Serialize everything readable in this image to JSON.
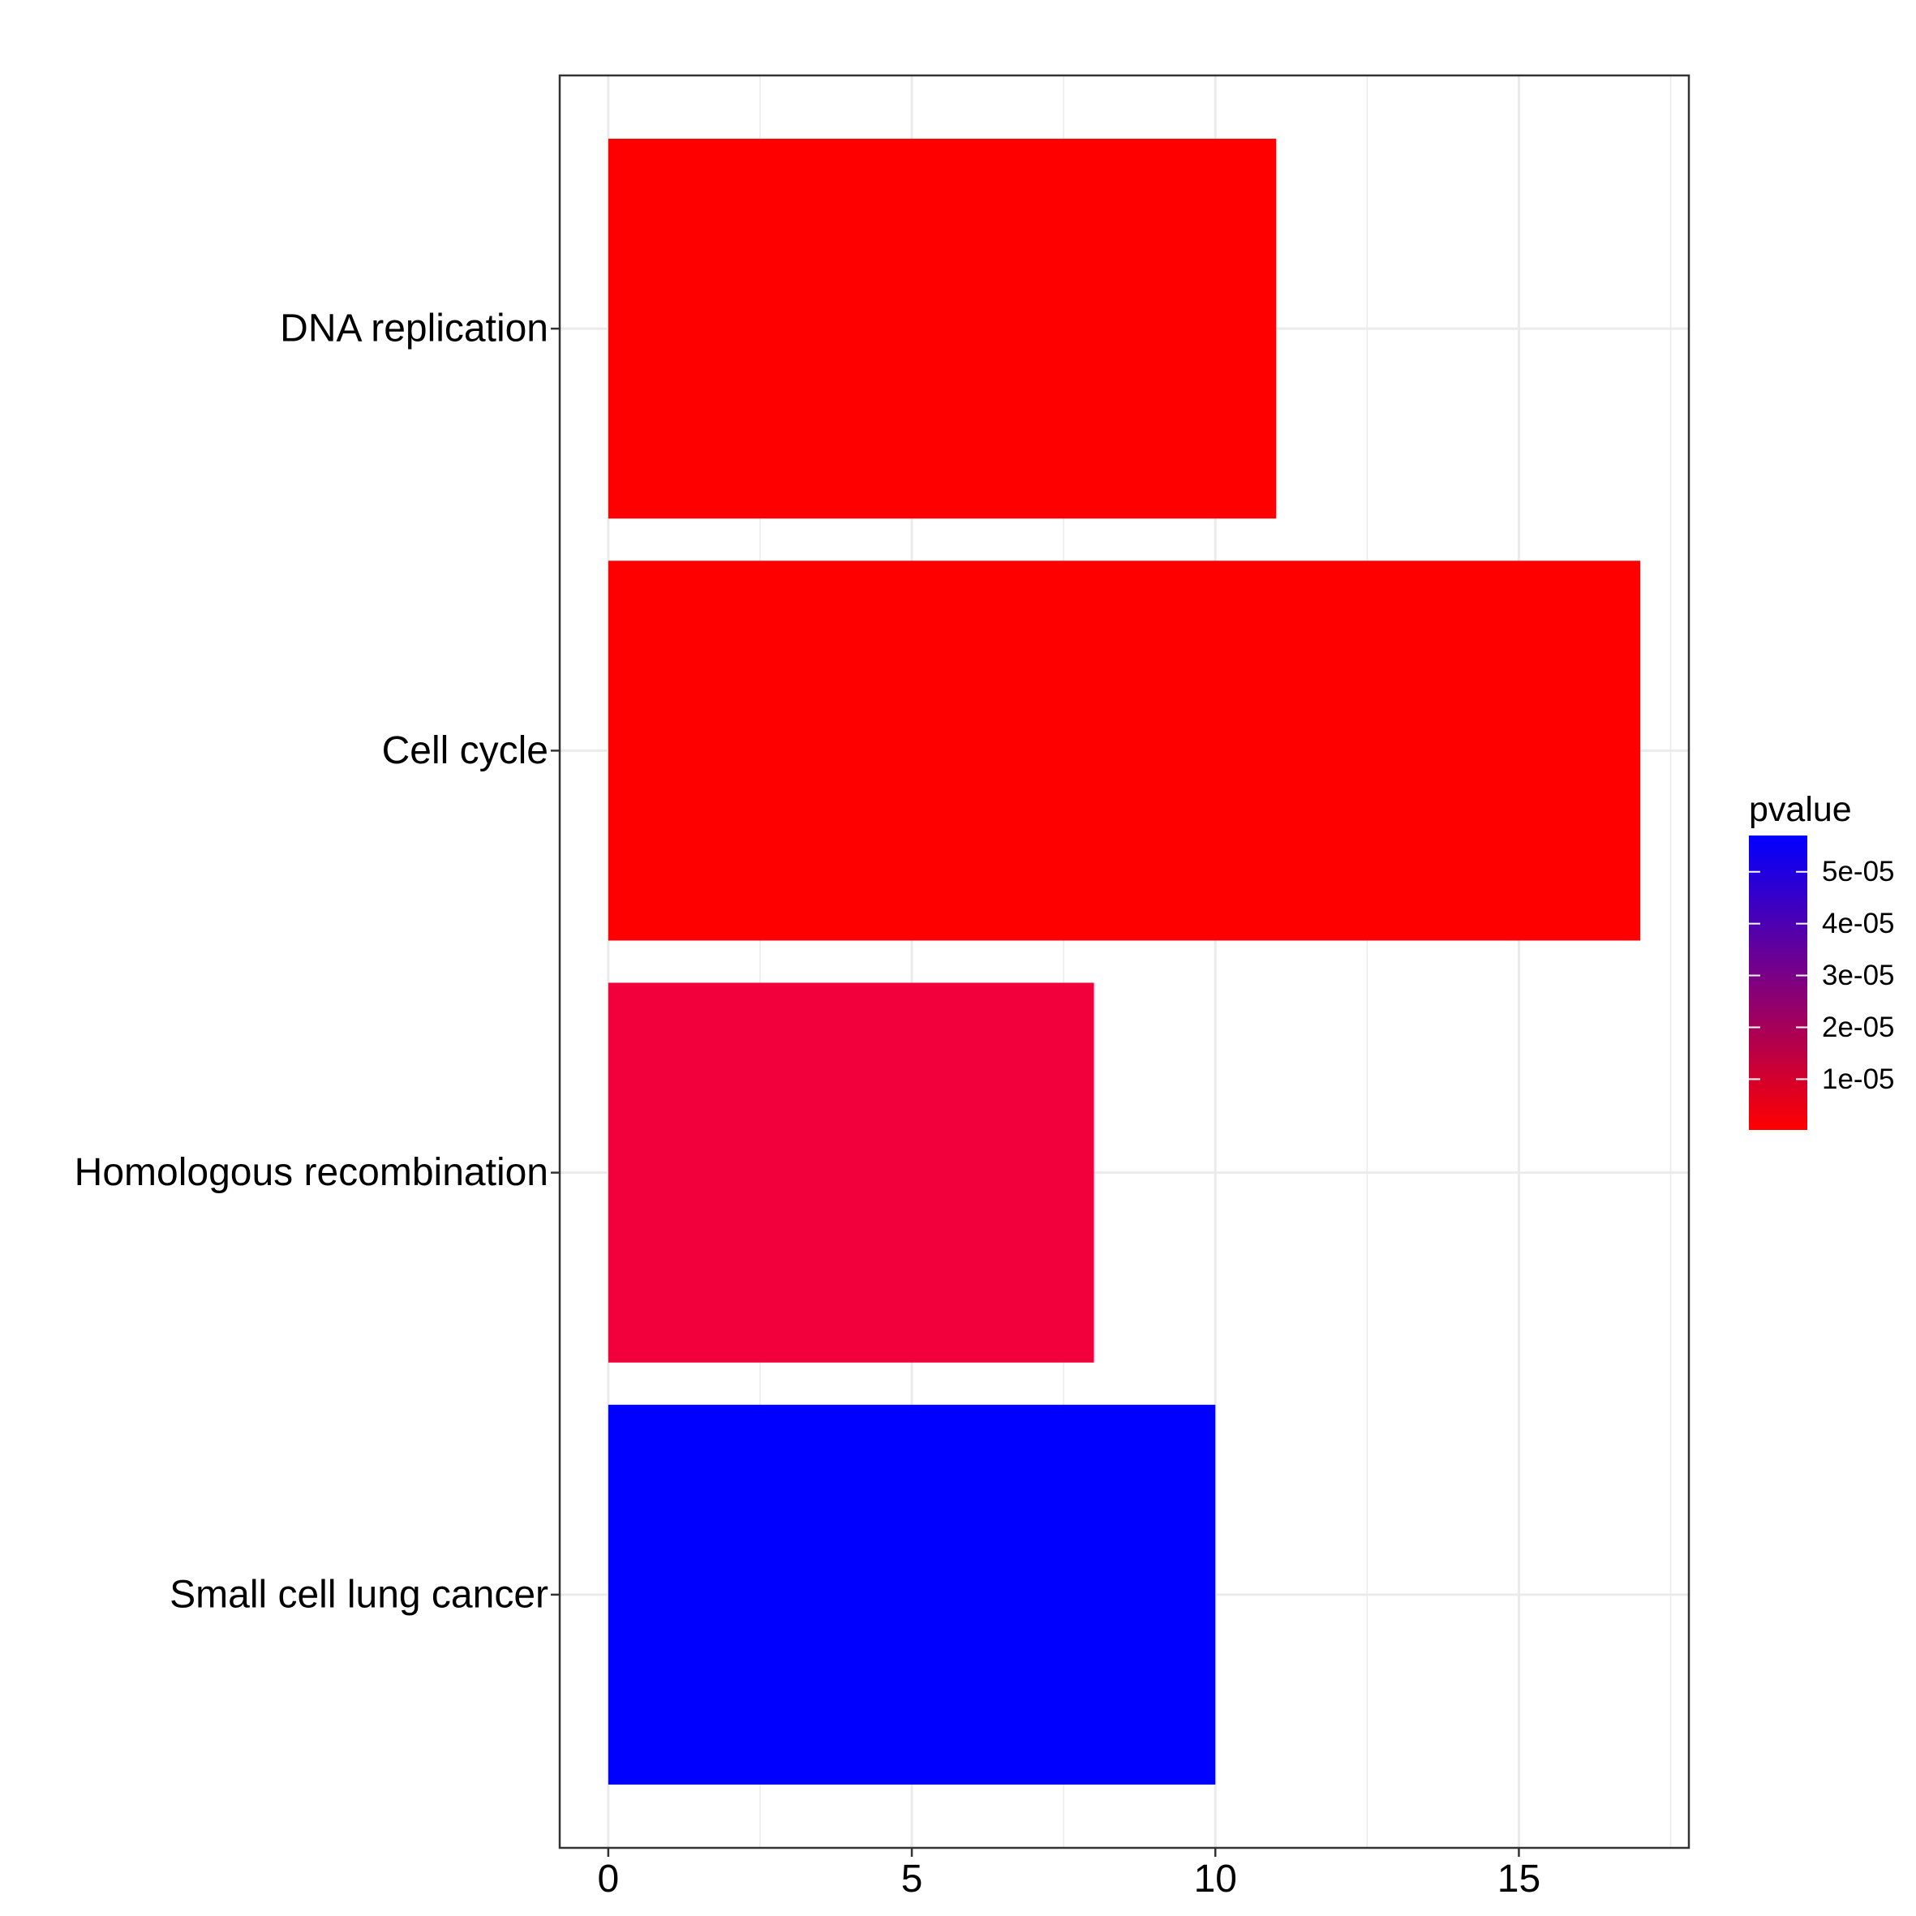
{
  "chart_data": {
    "type": "bar",
    "orientation": "horizontal",
    "categories": [
      "DNA replication",
      "Cell cycle",
      "Homologous recombination",
      "Small cell lung cancer"
    ],
    "values": [
      11,
      17,
      8,
      10
    ],
    "pvalues": [
      2e-07,
      5e-07,
      9e-06,
      5.7e-05
    ],
    "bar_colors": [
      "#FF0000",
      "#FF0000",
      "#F1003B",
      "#0000FF"
    ],
    "title": "",
    "xlabel": "",
    "ylabel": "",
    "xlim": [
      -0.8,
      17.8
    ],
    "x_ticks": [
      0,
      5,
      10,
      15
    ],
    "x_tick_labels": [
      "0",
      "5",
      "10",
      "15"
    ],
    "grid": true,
    "legend": {
      "title": "pvalue",
      "position": "right",
      "type": "colorbar",
      "low_color": "#FF0000",
      "high_color": "#0000FF",
      "range": [
        2e-07,
        5.7e-05
      ],
      "ticks": [
        1e-05,
        2e-05,
        3e-05,
        4e-05,
        5e-05
      ],
      "tick_labels": [
        "1e-05",
        "2e-05",
        "3e-05",
        "4e-05",
        "5e-05"
      ]
    }
  }
}
